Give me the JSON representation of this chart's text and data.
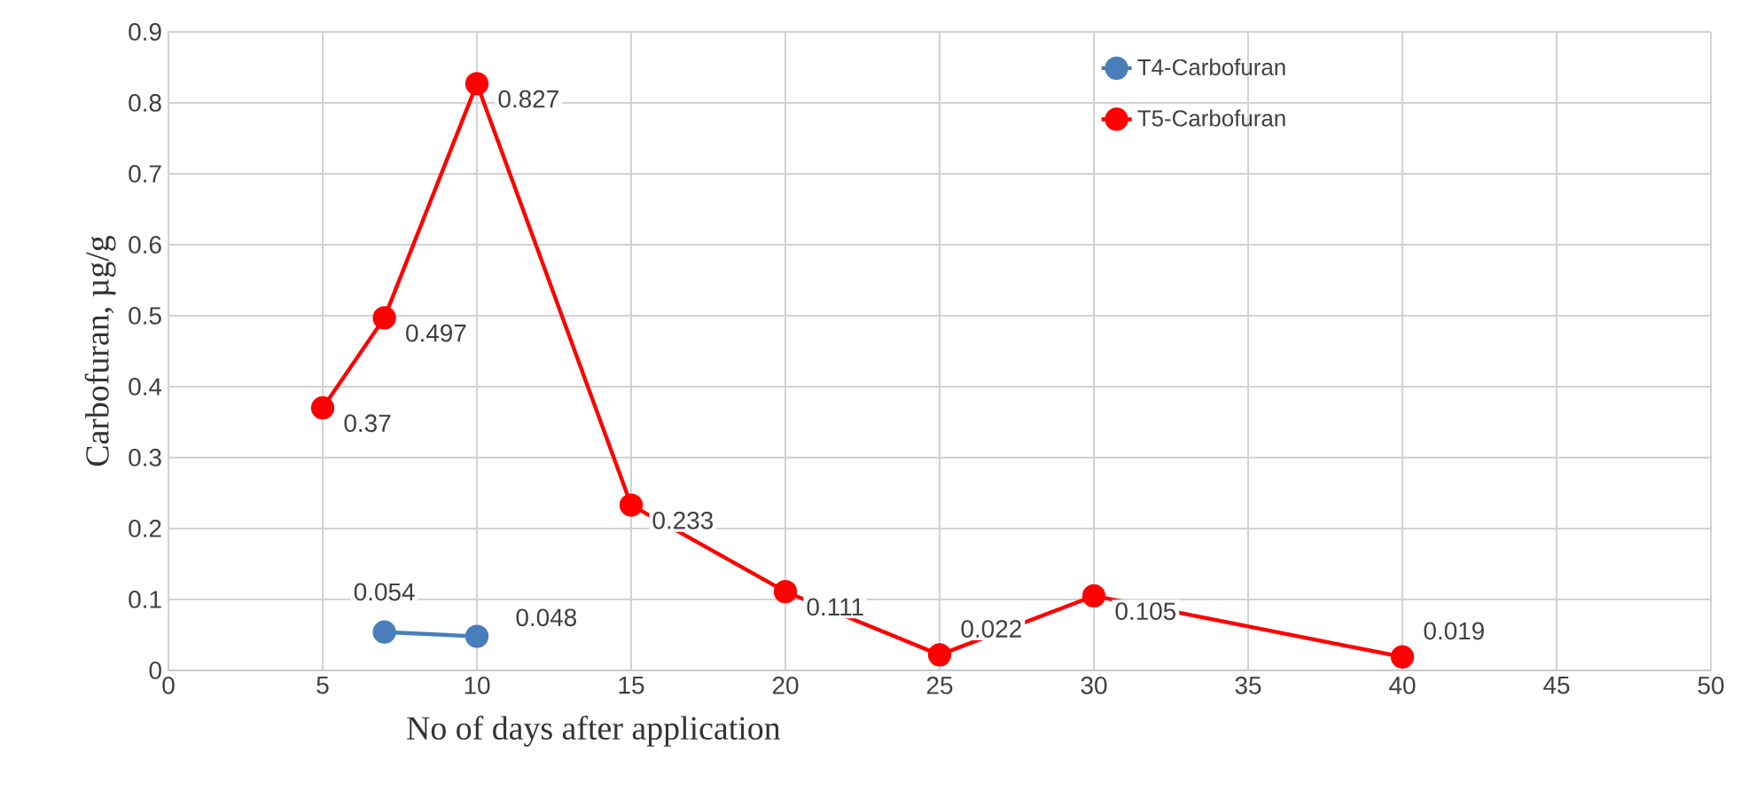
{
  "chart_data": {
    "type": "line",
    "xlabel": "No of days after application",
    "ylabel": "Carbofuran, µg/g",
    "xlim": [
      0,
      50
    ],
    "xticks": [
      0,
      5,
      10,
      15,
      20,
      25,
      30,
      35,
      40,
      45,
      50
    ],
    "ylim": [
      0,
      0.9
    ],
    "yticks": [
      0,
      0.1,
      0.2,
      0.3,
      0.4,
      0.5,
      0.6,
      0.7,
      0.8,
      0.9
    ],
    "grid": true,
    "legend": "top right",
    "marker": "circle",
    "data_labels": true,
    "series": [
      {
        "name": "T4-Carbofuran",
        "color": "#4a7ebb",
        "x": [
          7,
          10
        ],
        "values": [
          0.054,
          0.048
        ]
      },
      {
        "name": "T5-Carbofuran",
        "color": "#ff0000",
        "x": [
          5,
          7,
          10,
          15,
          20,
          25,
          30,
          40
        ],
        "values": [
          0.37,
          0.497,
          0.827,
          0.233,
          0.111,
          0.022,
          0.105,
          0.019
        ]
      }
    ]
  }
}
